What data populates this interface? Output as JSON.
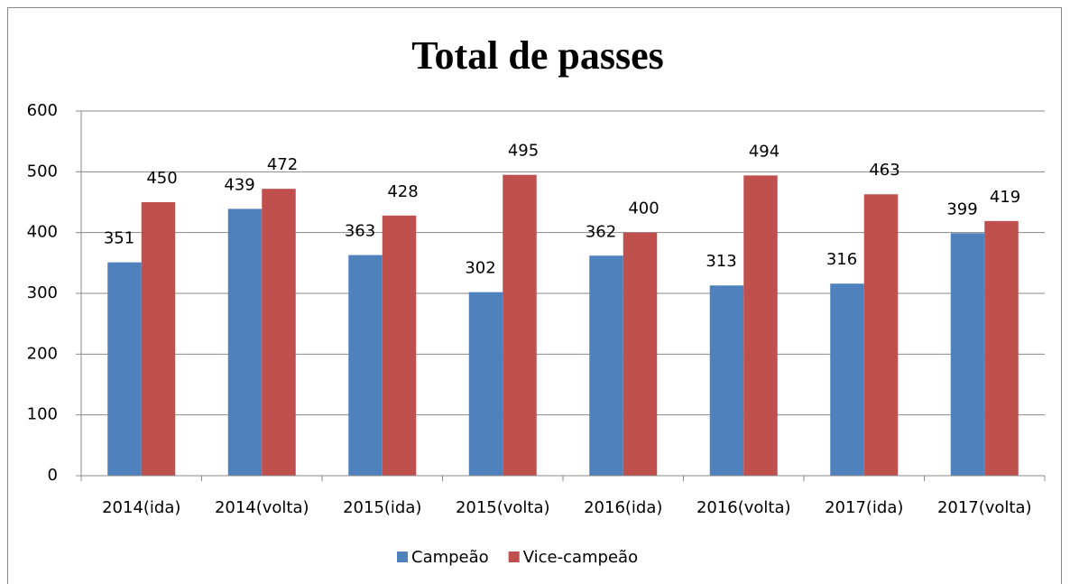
{
  "chart_data": {
    "type": "bar",
    "title": "Total de passes",
    "categories": [
      "2014(ida)",
      "2014(volta)",
      "2015(ida)",
      "2015(volta)",
      "2016(ida)",
      "2016(volta)",
      "2017(ida)",
      "2017(volta)"
    ],
    "series": [
      {
        "name": "Campeão",
        "color": "#4f81bd",
        "values": [
          351,
          439,
          363,
          302,
          362,
          313,
          316,
          399
        ]
      },
      {
        "name": "Vice-campeão",
        "color": "#c0504d",
        "values": [
          450,
          472,
          428,
          495,
          400,
          494,
          463,
          419
        ]
      }
    ],
    "ylim": [
      0,
      600
    ],
    "yticks": [
      0,
      100,
      200,
      300,
      400,
      500,
      600
    ],
    "grid": true,
    "legend": "bottom"
  }
}
